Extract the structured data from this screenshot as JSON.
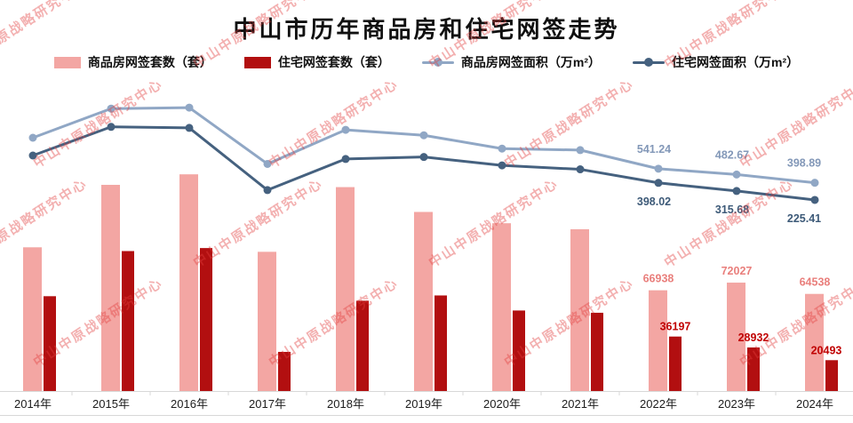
{
  "title": "中山市历年商品房和住宅网签走势",
  "watermark": {
    "text": "中山中原战略研究中心",
    "color": "#e23c3c"
  },
  "chart_data": {
    "type": "combo-bar-line",
    "title": "中山市历年商品房和住宅网签走势",
    "categories": [
      "2014年",
      "2015年",
      "2016年",
      "2017年",
      "2018年",
      "2019年",
      "2020年",
      "2021年",
      "2022年",
      "2023年",
      "2024年"
    ],
    "series": [
      {
        "id": "commodity-units",
        "name": "商品房网签套数（套）",
        "type": "bar",
        "color": "#f3a6a3",
        "label_color": "#e97f7c",
        "values": [
          95500,
          137000,
          144000,
          92500,
          135500,
          119000,
          111500,
          107500,
          66938,
          72027,
          64538
        ],
        "labels": [
          null,
          null,
          null,
          null,
          null,
          null,
          null,
          null,
          "66938",
          "72027",
          "64538"
        ]
      },
      {
        "id": "residential-units",
        "name": "住宅网签套数（套）",
        "type": "bar",
        "color": "#b20f10",
        "label_color": "#c00101",
        "values": [
          63000,
          93000,
          95000,
          26000,
          60000,
          63500,
          53500,
          52000,
          36197,
          28932,
          20493
        ],
        "labels": [
          null,
          null,
          null,
          null,
          null,
          null,
          null,
          null,
          "36197",
          "28932",
          "20493"
        ]
      },
      {
        "id": "commodity-area",
        "name": "商品房网签面积（万m²）",
        "type": "line",
        "color": "#90a7c5",
        "label_color": "#8398b8",
        "values": [
          855,
          1150,
          1160,
          590,
          935,
          880,
          745,
          730,
          541.24,
          482.67,
          398.89
        ],
        "labels": [
          null,
          null,
          null,
          null,
          null,
          null,
          null,
          null,
          "541.24",
          "482.67",
          "398.89"
        ]
      },
      {
        "id": "residential-area",
        "name": "住宅网签面积（万m²）",
        "type": "line",
        "color": "#45617f",
        "label_color": "#3d5a78",
        "values": [
          675,
          965,
          955,
          325,
          640,
          660,
          575,
          535,
          398.02,
          315.68,
          225.41
        ],
        "labels": [
          null,
          null,
          null,
          null,
          null,
          null,
          null,
          null,
          "398.02",
          "315.68",
          "225.41"
        ]
      }
    ],
    "bar_ylim": [
      0,
      150000
    ],
    "legend_position": "top",
    "grid": false,
    "note": "2014-2021 values estimated from bar/line pixel positions; 2022-2024 values are the labels printed on the chart"
  }
}
